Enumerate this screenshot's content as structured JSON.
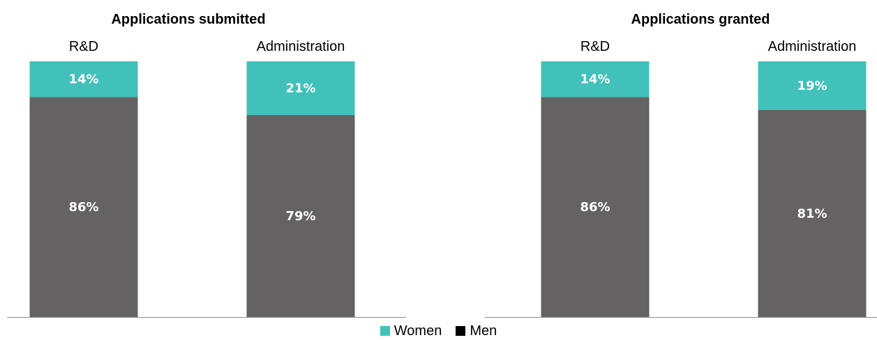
{
  "chart_data": [
    {
      "type": "bar",
      "stacked": true,
      "title": "Applications submitted",
      "categories": [
        "R&D",
        "Administration"
      ],
      "series": [
        {
          "name": "Women",
          "values": [
            14,
            21
          ],
          "labels": [
            "14%",
            "21%"
          ],
          "color": "#41c1b9"
        },
        {
          "name": "Men",
          "values": [
            86,
            79
          ],
          "labels": [
            "86%",
            "79%"
          ],
          "color": "#656263"
        }
      ],
      "ylim": [
        0,
        100
      ],
      "grid": false
    },
    {
      "type": "bar",
      "stacked": true,
      "title": "Applications granted",
      "categories": [
        "R&D",
        "Administration"
      ],
      "series": [
        {
          "name": "Women",
          "values": [
            14,
            19
          ],
          "labels": [
            "14%",
            "19%"
          ],
          "color": "#41c1b9"
        },
        {
          "name": "Men",
          "values": [
            86,
            81
          ],
          "labels": [
            "86%",
            "81%"
          ],
          "color": "#656263"
        }
      ],
      "ylim": [
        0,
        100
      ],
      "grid": false
    }
  ],
  "legend": {
    "placement": "bottom",
    "items": [
      {
        "label": "Women",
        "color": "#41c1b9"
      },
      {
        "label": "Men",
        "color": "#000000"
      }
    ]
  }
}
